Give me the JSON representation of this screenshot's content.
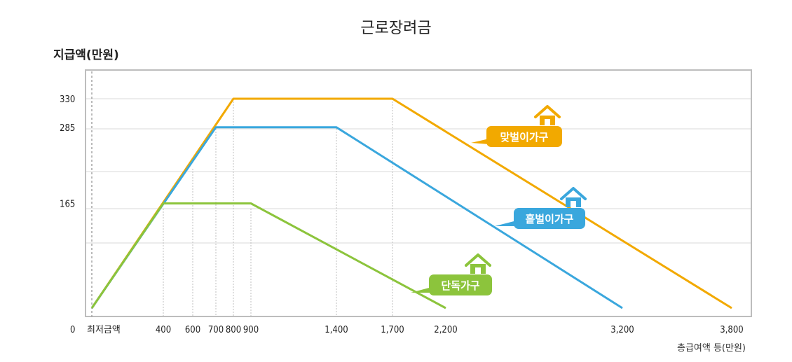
{
  "chart_data": {
    "type": "line",
    "title": "근로장려금",
    "ylabel": "지급액(만원)",
    "xlabel": "총급여액 등(만원)",
    "x_origin_label": "0",
    "x_min_label": "최저금액",
    "x_ticks": [
      400,
      600,
      700,
      800,
      900,
      1400,
      1700,
      2200,
      3200,
      3800
    ],
    "x_tick_labels": [
      "400",
      "600",
      "700",
      "800",
      "900",
      "1,400",
      "1,700",
      "2,200",
      "3,200",
      "3,800"
    ],
    "y_ticks": [
      165,
      285,
      330
    ],
    "y_tick_labels": [
      "165",
      "285",
      "330"
    ],
    "xlim": [
      0,
      3800
    ],
    "ylim": [
      0,
      330
    ],
    "grid": true,
    "series": [
      {
        "name": "맞벌이가구",
        "color": "#f2a900",
        "icon": "house-icon",
        "points": [
          [
            0,
            0
          ],
          [
            800,
            330
          ],
          [
            1700,
            330
          ],
          [
            3800,
            0
          ]
        ]
      },
      {
        "name": "홑벌이가구",
        "color": "#3aa7dd",
        "icon": "house-icon",
        "points": [
          [
            0,
            0
          ],
          [
            700,
            285
          ],
          [
            1400,
            285
          ],
          [
            3200,
            0
          ]
        ]
      },
      {
        "name": "단독가구",
        "color": "#8cc43c",
        "icon": "house-icon",
        "points": [
          [
            0,
            0
          ],
          [
            400,
            165
          ],
          [
            900,
            165
          ],
          [
            2200,
            0
          ]
        ]
      }
    ]
  }
}
